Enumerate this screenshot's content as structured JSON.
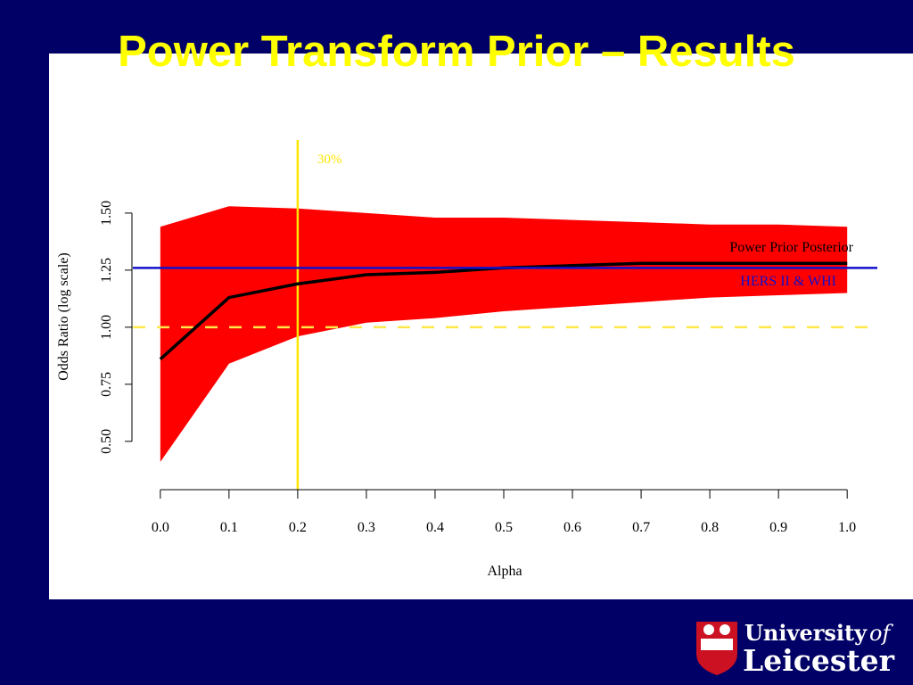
{
  "chart_data": {
    "type": "line",
    "title": "Power Transform Prior – Results",
    "x_label": "Alpha",
    "y_label": "Odds Ratio (log scale)",
    "x": [
      0.0,
      0.1,
      0.2,
      0.3,
      0.4,
      0.5,
      0.6,
      0.7,
      0.8,
      0.9,
      1.0
    ],
    "series": [
      {
        "name": "Power Prior Posterior",
        "color": "#000000",
        "values": [
          0.86,
          1.13,
          1.19,
          1.23,
          1.24,
          1.26,
          1.27,
          1.28,
          1.28,
          1.28,
          1.28
        ]
      }
    ],
    "band": {
      "color": "#ff0000",
      "upper": [
        1.44,
        1.53,
        1.52,
        1.5,
        1.48,
        1.48,
        1.47,
        1.46,
        1.45,
        1.45,
        1.44
      ],
      "lower": [
        0.41,
        0.84,
        0.96,
        1.02,
        1.04,
        1.07,
        1.09,
        1.11,
        1.13,
        1.14,
        1.15
      ]
    },
    "reference_line": {
      "name": "HERS II & WHI",
      "value": 1.26,
      "color": "#1010cc"
    },
    "null_line": {
      "value": 1.0,
      "color": "#ffe74a"
    },
    "vertical_line": {
      "value": 0.2,
      "label": "30%",
      "color": "#ffe600"
    },
    "xlim": [
      -0.04,
      1.04
    ],
    "ylim": [
      0.3,
      1.82
    ],
    "log": false,
    "xticks": [
      {
        "value": 0.0,
        "label": "0.0"
      },
      {
        "value": 0.1,
        "label": "0.1"
      },
      {
        "value": 0.2,
        "label": "0.2"
      },
      {
        "value": 0.3,
        "label": "0.3"
      },
      {
        "value": 0.4,
        "label": "0.4"
      },
      {
        "value": 0.5,
        "label": "0.5"
      },
      {
        "value": 0.6,
        "label": "0.6"
      },
      {
        "value": 0.7,
        "label": "0.7"
      },
      {
        "value": 0.8,
        "label": "0.8"
      },
      {
        "value": 0.9,
        "label": "0.9"
      },
      {
        "value": 1.0,
        "label": "1.0"
      }
    ],
    "yticks": [
      {
        "value": 0.5,
        "label": "0.50"
      },
      {
        "value": 0.75,
        "label": "0.75"
      },
      {
        "value": 1.0,
        "label": "1.00"
      },
      {
        "value": 1.25,
        "label": "1.25"
      },
      {
        "value": 1.5,
        "label": "1.50"
      }
    ]
  },
  "logo": {
    "line1": "University",
    "of": "of",
    "line2": "Leicester"
  }
}
